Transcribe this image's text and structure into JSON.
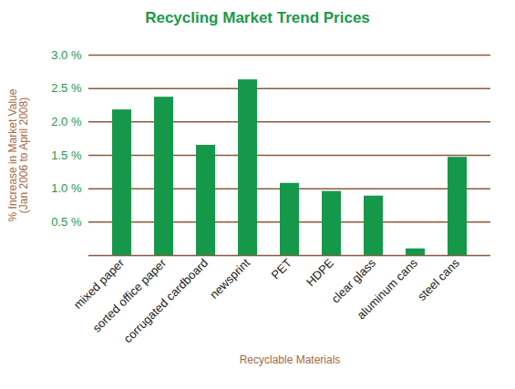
{
  "chart_data": {
    "type": "bar",
    "title": "Recycling Market Trend Prices",
    "x_label": "Recyclable Materials",
    "y_label": "% Increase in Market Value\n(Jan 2006 to April 2008)",
    "categories": [
      "mixed paper",
      "sorted office paper",
      "corrugated cardboard",
      "newsprint",
      "PET",
      "HDPE",
      "clear glass",
      "aluminum cans",
      "steel cans"
    ],
    "values": [
      2.18,
      2.37,
      1.65,
      2.63,
      1.08,
      0.96,
      0.89,
      0.1,
      1.47
    ],
    "color": "#16984a",
    "ylim": [
      0,
      3.0
    ],
    "yticks": [
      {
        "value": 0.5,
        "label": "0.5 %"
      },
      {
        "value": 1.0,
        "label": "1.0 %"
      },
      {
        "value": 1.5,
        "label": "1.5 %"
      },
      {
        "value": 2.0,
        "label": "2.0 %"
      },
      {
        "value": 2.5,
        "label": "2.5 %"
      },
      {
        "value": 3.0,
        "label": "3.0 %"
      }
    ],
    "grid": true
  }
}
